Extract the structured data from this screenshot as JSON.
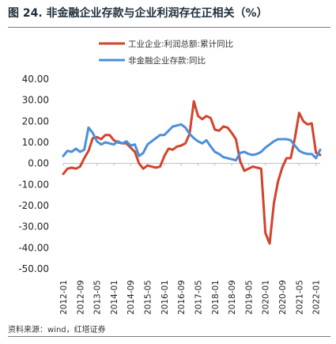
{
  "figure": {
    "title": "图 24. 非金融企业存款与企业利润存在正相关（%）",
    "source": "资料来源：wind，红塔证券"
  },
  "chart_data": {
    "type": "line",
    "xlabel": "",
    "ylabel": "",
    "ylim": [
      -50,
      40
    ],
    "yticks": [
      40,
      30,
      20,
      10,
      0,
      -10,
      -20,
      -30,
      -40,
      -50
    ],
    "ytick_labels": [
      "40.00",
      "30.00",
      "20.00",
      "10.00",
      "0.00",
      "-10.00",
      "-20.00",
      "-30.00",
      "-40.00",
      "-50.00"
    ],
    "xticks": [
      "2012-01",
      "2012-09",
      "2013-05",
      "2014-01",
      "2014-09",
      "2015-05",
      "2016-01",
      "2016-09",
      "2017-05",
      "2018-01",
      "2018-09",
      "2019-05",
      "2020-01",
      "2020-09",
      "2021-05",
      "2022-01"
    ],
    "grid": false,
    "legend_position": "top",
    "series": [
      {
        "name": "工业企业:利润总额:累计同比",
        "color": "#d4432b",
        "x": [
          "2012-01",
          "2012-03",
          "2012-05",
          "2012-07",
          "2012-09",
          "2012-11",
          "2013-01",
          "2013-03",
          "2013-05",
          "2013-07",
          "2013-09",
          "2013-11",
          "2014-01",
          "2014-03",
          "2014-05",
          "2014-07",
          "2014-09",
          "2014-11",
          "2015-01",
          "2015-03",
          "2015-05",
          "2015-07",
          "2015-09",
          "2015-11",
          "2016-01",
          "2016-03",
          "2016-05",
          "2016-07",
          "2016-09",
          "2016-11",
          "2017-01",
          "2017-03",
          "2017-05",
          "2017-07",
          "2017-09",
          "2017-11",
          "2018-01",
          "2018-03",
          "2018-05",
          "2018-07",
          "2018-09",
          "2018-11",
          "2019-01",
          "2019-03",
          "2019-05",
          "2019-07",
          "2019-09",
          "2019-11",
          "2020-01",
          "2020-03",
          "2020-05",
          "2020-07",
          "2020-09",
          "2020-11",
          "2021-01",
          "2021-03",
          "2021-05",
          "2021-07",
          "2021-09",
          "2021-11",
          "2022-01",
          "2022-03"
        ],
        "values": [
          -5.0,
          -2.5,
          -2.0,
          -2.5,
          -1.5,
          2.5,
          6.0,
          12.0,
          12.5,
          11.5,
          13.5,
          13.5,
          11.0,
          10.0,
          9.5,
          9.5,
          7.5,
          5.5,
          0.0,
          -2.5,
          -1.0,
          -1.5,
          -2.0,
          -1.5,
          3.5,
          7.0,
          6.5,
          8.0,
          8.5,
          9.5,
          14.0,
          29.5,
          22.5,
          21.0,
          22.5,
          21.5,
          16.0,
          15.5,
          17.5,
          17.0,
          14.5,
          11.5,
          1.0,
          -3.5,
          -2.5,
          -1.5,
          -2.0,
          -2.5,
          -33.0,
          -38.0,
          -19.0,
          -8.5,
          -2.0,
          2.5,
          2.5,
          12.0,
          24.0,
          20.0,
          18.5,
          19.0,
          5.0,
          4.0
        ]
      },
      {
        "name": "非金融企业存款:同比",
        "color": "#4a90d9",
        "x": [
          "2012-01",
          "2012-03",
          "2012-05",
          "2012-07",
          "2012-09",
          "2012-11",
          "2013-01",
          "2013-03",
          "2013-05",
          "2013-07",
          "2013-09",
          "2013-11",
          "2014-01",
          "2014-03",
          "2014-05",
          "2014-07",
          "2014-09",
          "2014-11",
          "2015-01",
          "2015-03",
          "2015-05",
          "2015-07",
          "2015-09",
          "2015-11",
          "2016-01",
          "2016-03",
          "2016-05",
          "2016-07",
          "2016-09",
          "2016-11",
          "2017-01",
          "2017-03",
          "2017-05",
          "2017-07",
          "2017-09",
          "2017-11",
          "2018-01",
          "2018-03",
          "2018-05",
          "2018-07",
          "2018-09",
          "2018-11",
          "2019-01",
          "2019-03",
          "2019-05",
          "2019-07",
          "2019-09",
          "2019-11",
          "2020-01",
          "2020-03",
          "2020-05",
          "2020-07",
          "2020-09",
          "2020-11",
          "2021-01",
          "2021-03",
          "2021-05",
          "2021-07",
          "2021-09",
          "2021-11",
          "2022-01",
          "2022-03"
        ],
        "values": [
          3.5,
          6.0,
          5.5,
          7.0,
          5.5,
          6.5,
          17.0,
          14.5,
          10.5,
          9.0,
          10.0,
          9.5,
          9.0,
          10.5,
          9.5,
          10.5,
          8.5,
          9.0,
          3.5,
          5.0,
          9.0,
          10.5,
          12.0,
          13.5,
          13.5,
          15.5,
          17.5,
          18.0,
          18.5,
          17.0,
          14.0,
          12.0,
          10.5,
          9.5,
          11.0,
          8.0,
          5.5,
          4.5,
          3.0,
          2.5,
          2.0,
          1.5,
          5.0,
          5.5,
          4.5,
          4.0,
          4.5,
          5.5,
          7.5,
          9.0,
          10.5,
          11.5,
          11.5,
          11.5,
          11.0,
          8.5,
          6.0,
          5.0,
          4.5,
          4.5,
          2.5,
          6.5
        ]
      }
    ]
  }
}
